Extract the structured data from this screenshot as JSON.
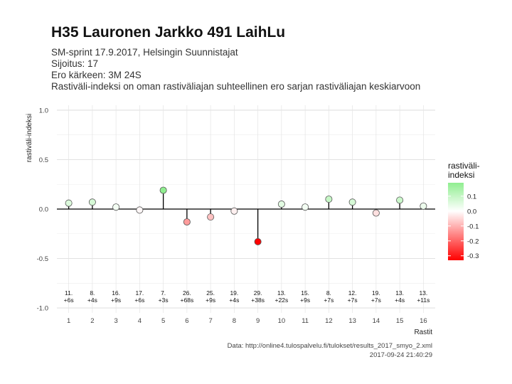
{
  "header": {
    "title": "H35 Lauronen Jarkko 491 LaihLu",
    "subtitle_lines": [
      "SM-sprint 17.9.2017, Helsingin Suunnistajat",
      "Sijoitus: 17",
      "Ero kärkeen: 3M 24S",
      "Rastiväli-indeksi on oman rastiväliajan suhteellinen ero sarjan rastiväliajan keskiarvoon"
    ]
  },
  "caption": {
    "source": "Data: http://online4.tulospalvelu.fi/tulokset/results_2017_smyo_2.xml",
    "timestamp": "2017-09-24 21:40:29"
  },
  "chart_data": {
    "type": "lollipop",
    "xlabel": "Rastit",
    "ylabel": "rastiväli-indeksi",
    "x": [
      1,
      2,
      3,
      4,
      5,
      6,
      7,
      8,
      9,
      10,
      11,
      12,
      13,
      14,
      15,
      16
    ],
    "values": [
      0.06,
      0.07,
      0.02,
      -0.01,
      0.19,
      -0.13,
      -0.08,
      -0.02,
      -0.33,
      0.05,
      0.02,
      0.1,
      0.07,
      -0.04,
      0.09,
      0.03
    ],
    "rank_labels": [
      "11.",
      "8.",
      "16.",
      "17.",
      "7.",
      "26.",
      "25.",
      "19.",
      "29.",
      "13.",
      "15.",
      "8.",
      "12.",
      "19.",
      "13.",
      "13."
    ],
    "time_labels": [
      "+6s",
      "+4s",
      "+9s",
      "+6s",
      "+3s",
      "+68s",
      "+9s",
      "+4s",
      "+38s",
      "+22s",
      "+9s",
      "+7s",
      "+7s",
      "+7s",
      "+4s",
      "+11s"
    ],
    "xlim": [
      0.5,
      16.5
    ],
    "ylim": [
      -1.05,
      1.05
    ],
    "yticks": [
      -1.0,
      -0.5,
      0.0,
      0.5,
      1.0
    ],
    "ytick_labels": [
      "-1.0",
      "-0.5",
      "0.0",
      "0.5",
      "1.0"
    ],
    "grid": true,
    "legend": {
      "title_lines": [
        "rastiväli-",
        "indeksi"
      ],
      "ticks": [
        0.1,
        0.0,
        -0.1,
        -0.2,
        -0.3
      ],
      "tick_labels": [
        "0.1",
        "0.0",
        "-0.1",
        "-0.2",
        "-0.3"
      ],
      "range": [
        -0.33,
        0.19
      ],
      "position": "right"
    },
    "colors": {
      "high": "#90ee90",
      "mid": "#ffffff",
      "low": "#ff0000"
    }
  }
}
